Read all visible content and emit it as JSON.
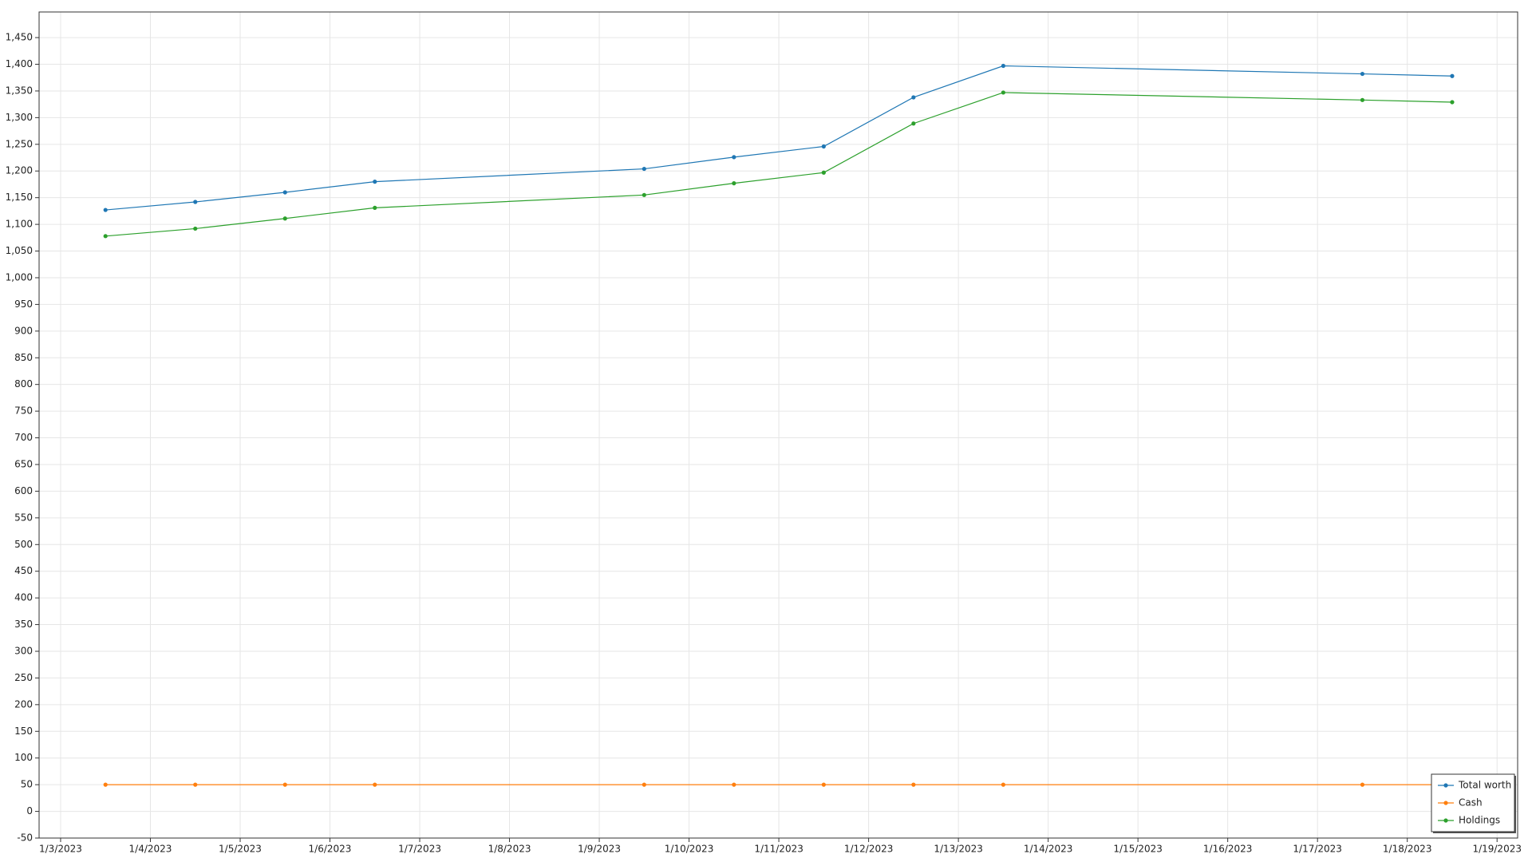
{
  "chart_data": {
    "type": "line",
    "x": [
      "2023-01-03T12:00",
      "2023-01-04T12:00",
      "2023-01-05T12:00",
      "2023-01-06T12:00",
      "2023-01-09T12:00",
      "2023-01-10T12:00",
      "2023-01-11T12:00",
      "2023-01-12T12:00",
      "2023-01-13T12:00",
      "2023-01-17T12:00",
      "2023-01-18T12:00"
    ],
    "series": [
      {
        "name": "Total worth",
        "color": "#1f77b4",
        "values": [
          1127,
          1142,
          1160,
          1180,
          1204,
          1226,
          1246,
          1338,
          1397,
          1382,
          1378
        ]
      },
      {
        "name": "Cash",
        "color": "#ff7f0e",
        "values": [
          50,
          50,
          50,
          50,
          50,
          50,
          50,
          50,
          50,
          50,
          50
        ]
      },
      {
        "name": "Holdings",
        "color": "#2ca02c",
        "values": [
          1078,
          1092,
          1111,
          1131,
          1155,
          1177,
          1197,
          1289,
          1347,
          1333,
          1329
        ]
      }
    ],
    "xlim": [
      "2023-01-02T18:15",
      "2023-01-19T05:30"
    ],
    "xticks": [
      {
        "value": "2023-01-03T00:00",
        "label": "1/3/2023"
      },
      {
        "value": "2023-01-04T00:00",
        "label": "1/4/2023"
      },
      {
        "value": "2023-01-05T00:00",
        "label": "1/5/2023"
      },
      {
        "value": "2023-01-06T00:00",
        "label": "1/6/2023"
      },
      {
        "value": "2023-01-07T00:00",
        "label": "1/7/2023"
      },
      {
        "value": "2023-01-08T00:00",
        "label": "1/8/2023"
      },
      {
        "value": "2023-01-09T00:00",
        "label": "1/9/2023"
      },
      {
        "value": "2023-01-10T00:00",
        "label": "1/10/2023"
      },
      {
        "value": "2023-01-11T00:00",
        "label": "1/11/2023"
      },
      {
        "value": "2023-01-12T00:00",
        "label": "1/12/2023"
      },
      {
        "value": "2023-01-13T00:00",
        "label": "1/13/2023"
      },
      {
        "value": "2023-01-14T00:00",
        "label": "1/14/2023"
      },
      {
        "value": "2023-01-15T00:00",
        "label": "1/15/2023"
      },
      {
        "value": "2023-01-16T00:00",
        "label": "1/16/2023"
      },
      {
        "value": "2023-01-17T00:00",
        "label": "1/17/2023"
      },
      {
        "value": "2023-01-18T00:00",
        "label": "1/18/2023"
      },
      {
        "value": "2023-01-19T00:00",
        "label": "1/19/2023"
      }
    ],
    "ylim": [
      -50,
      1498
    ],
    "yticks": [
      -50,
      0,
      50,
      100,
      150,
      200,
      250,
      300,
      350,
      400,
      450,
      500,
      550,
      600,
      650,
      700,
      750,
      800,
      850,
      900,
      950,
      {
        "value": 1000,
        "label": "1,000"
      },
      {
        "value": 1050,
        "label": "1,050"
      },
      {
        "value": 1100,
        "label": "1,100"
      },
      {
        "value": 1150,
        "label": "1,150"
      },
      {
        "value": 1200,
        "label": "1,200"
      },
      {
        "value": 1250,
        "label": "1,250"
      },
      {
        "value": 1300,
        "label": "1,300"
      },
      {
        "value": 1350,
        "label": "1,350"
      },
      {
        "value": 1400,
        "label": "1,400"
      },
      {
        "value": 1450,
        "label": "1,450"
      }
    ],
    "grid": true,
    "legend": "lower right"
  }
}
